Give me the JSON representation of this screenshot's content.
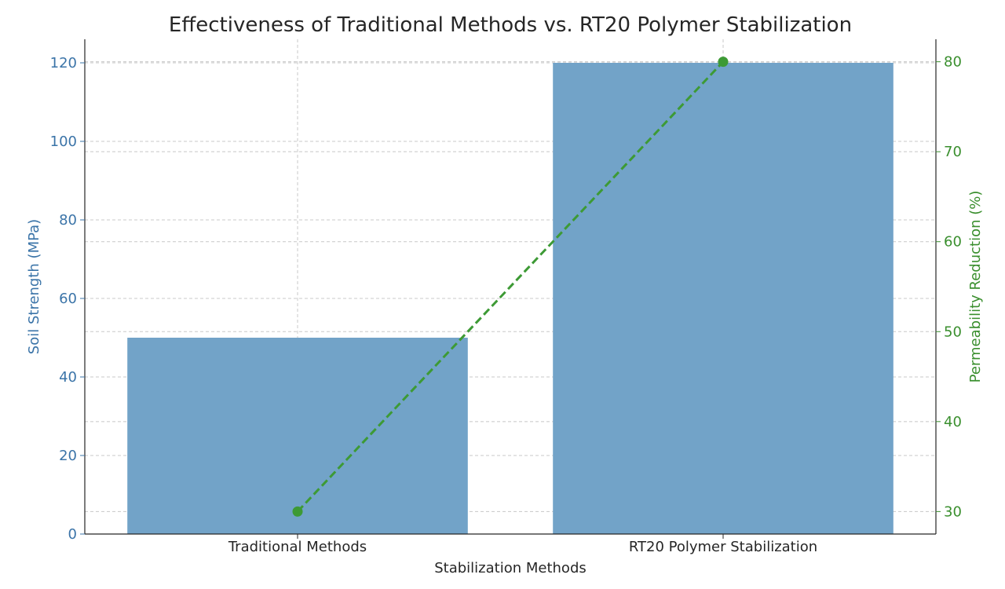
{
  "chart_data": {
    "type": "bar",
    "title": "Effectiveness of Traditional Methods vs. RT20 Polymer Stabilization",
    "xlabel": "Stabilization Methods",
    "categories": [
      "Traditional Methods",
      "RT20 Polymer Stabilization"
    ],
    "grid": true,
    "left_axis": {
      "label": "Soil Strength (MPa)",
      "range": [
        0,
        126
      ],
      "ticks": [
        0,
        20,
        40,
        60,
        80,
        100,
        120
      ],
      "color": "#3b74a8"
    },
    "right_axis": {
      "label": "Permeability Reduction (%)",
      "range": [
        27.5,
        82.5
      ],
      "ticks": [
        30,
        40,
        50,
        60,
        70,
        80
      ],
      "color": "#3a8f2e"
    },
    "series": [
      {
        "kind": "bar",
        "axis": "left",
        "values": [
          50,
          120
        ],
        "color": "#72a3c8"
      },
      {
        "kind": "line",
        "axis": "right",
        "style": "dashed",
        "marker": "circle",
        "values": [
          30,
          80
        ],
        "color": "#3d9a35"
      }
    ]
  }
}
